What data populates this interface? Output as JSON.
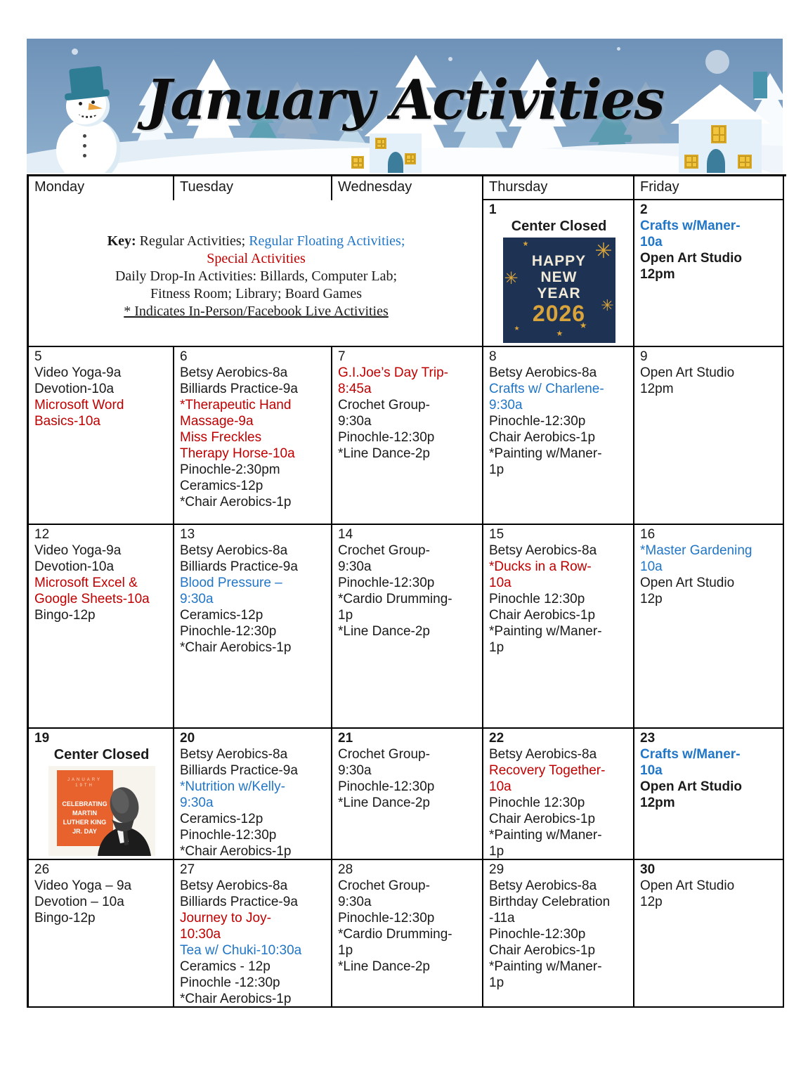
{
  "banner": {
    "title": "January Activities"
  },
  "colors": {
    "red": "#C00000",
    "blue": "#2176C7",
    "mlk_orange": "#E8622D",
    "hny_navy": "#1E3353",
    "hny_gold": "#D9A43B"
  },
  "icons": {
    "firework": "✳",
    "star": "★",
    "dot": "·"
  },
  "graphics": {
    "hny": {
      "word1": "HAPPY",
      "word2": "NEW",
      "word3": "YEAR",
      "year": "2026"
    },
    "mlk": {
      "date": "JANUARY 19TH",
      "lines": [
        "CELEBRATING",
        "MARTIN",
        "LUTHER KING",
        "JR. DAY"
      ]
    }
  },
  "calendar": {
    "headers": [
      "Monday",
      "Tuesday",
      "Wednesday",
      "Thursday",
      "Friday"
    ],
    "key_lines": [
      [
        {
          "t": "Key:",
          "b": true
        },
        {
          "t": " Regular Activities; "
        },
        {
          "t": "Regular Floating Activities;",
          "c": "blue"
        }
      ],
      [
        {
          "t": "Special Activities",
          "c": "red"
        }
      ],
      [
        {
          "t": "Daily Drop-In Activities: Billards, Computer Lab;"
        }
      ],
      [
        {
          "t": "Fitness Room; Library; Board Games"
        }
      ],
      [
        {
          "t": "* Indicates In-Person/Facebook Live Activities",
          "u": true
        }
      ]
    ],
    "rows": [
      {
        "cells": [
          {
            "type": "key"
          },
          {
            "type": "day",
            "num": "1",
            "bold_num": true,
            "closed": "Center Closed",
            "graphic": "hny"
          },
          {
            "type": "day",
            "num": "2",
            "bold_num": true,
            "events": [
              {
                "t": "Crafts w/Maner-\n10a",
                "c": "blue",
                "b": true
              },
              {
                "t": "Open Art Studio\n12pm",
                "b": true
              }
            ]
          }
        ]
      },
      {
        "cells": [
          {
            "type": "day",
            "num": "5",
            "events": [
              {
                "t": "Video Yoga-9a"
              },
              {
                "t": "Devotion-10a"
              },
              {
                "t": "Microsoft Word\nBasics-10a",
                "c": "red"
              }
            ]
          },
          {
            "type": "day",
            "num": "6",
            "events": [
              {
                "t": "Betsy Aerobics-8a"
              },
              {
                "t": "Billiards Practice-9a"
              },
              {
                "t": "*Therapeutic Hand\nMassage-9a",
                "c": "red"
              },
              {
                "t": "Miss Freckles\nTherapy Horse-10a",
                "c": "red"
              },
              {
                "t": "Pinochle-2:30pm"
              },
              {
                "t": "Ceramics-12p"
              },
              {
                "t": "*Chair Aerobics-1p"
              }
            ]
          },
          {
            "type": "day",
            "num": "7",
            "events": [
              {
                "t": "G.I.Joe’s Day Trip-\n8:45a",
                "c": "red"
              },
              {
                "t": "Crochet Group-\n9:30a"
              },
              {
                "t": "Pinochle-12:30p"
              },
              {
                "t": "*Line Dance-2p"
              }
            ]
          },
          {
            "type": "day",
            "num": "8",
            "events": [
              {
                "t": "Betsy Aerobics-8a"
              },
              {
                "t": "Crafts w/ Charlene-\n9:30a",
                "c": "blue"
              },
              {
                "t": "Pinochle-12:30p"
              },
              {
                "t": "Chair Aerobics-1p"
              },
              {
                "t": "*Painting w/Maner-\n1p"
              }
            ]
          },
          {
            "type": "day",
            "num": "9",
            "events": [
              {
                "t": "Open Art Studio\n12pm"
              }
            ]
          }
        ]
      },
      {
        "cells": [
          {
            "type": "day",
            "num": "12",
            "events": [
              {
                "t": "Video Yoga-9a"
              },
              {
                "t": "Devotion-10a"
              },
              {
                "t": "Microsoft Excel &\nGoogle Sheets-10a",
                "c": "red"
              },
              {
                "t": "Bingo-12p"
              }
            ]
          },
          {
            "type": "day",
            "num": "13",
            "events": [
              {
                "t": "Betsy Aerobics-8a"
              },
              {
                "t": "Billiards Practice-9a"
              },
              {
                "t": "Blood Pressure –\n9:30a",
                "c": "blue"
              },
              {
                "t": "Ceramics-12p"
              },
              {
                "t": "Pinochle-12:30p"
              },
              {
                "t": "*Chair Aerobics-1p"
              }
            ]
          },
          {
            "type": "day",
            "num": "14",
            "events": [
              {
                "t": "Crochet Group-\n9:30a"
              },
              {
                "t": "Pinochle-12:30p"
              },
              {
                "t": "*Cardio Drumming-\n1p"
              },
              {
                "t": "*Line Dance-2p"
              }
            ]
          },
          {
            "type": "day",
            "num": "15",
            "events": [
              {
                "t": "Betsy Aerobics-8a"
              },
              {
                "t": "*Ducks in a Row-\n10a",
                "c": "red"
              },
              {
                "t": "Pinochle 12:30p"
              },
              {
                "t": "Chair Aerobics-1p"
              },
              {
                "t": "*Painting w/Maner-\n1p"
              }
            ]
          },
          {
            "type": "day",
            "num": "16",
            "events": [
              {
                "t": "*Master Gardening\n10a",
                "c": "blue"
              },
              {
                "t": "Open Art Studio\n12p"
              }
            ]
          }
        ]
      },
      {
        "cells": [
          {
            "type": "day",
            "num": "19",
            "bold_num": true,
            "closed": "Center Closed",
            "graphic": "mlk"
          },
          {
            "type": "day",
            "num": "20",
            "bold_num": true,
            "events": [
              {
                "t": "Betsy Aerobics-8a"
              },
              {
                "t": "Billiards Practice-9a"
              },
              {
                "t": "*Nutrition w/Kelly-\n9:30a",
                "c": "blue"
              },
              {
                "t": "Ceramics-12p"
              },
              {
                "t": "Pinochle-12:30p"
              },
              {
                "t": "*Chair Aerobics-1p"
              }
            ]
          },
          {
            "type": "day",
            "num": "21",
            "bold_num": true,
            "events": [
              {
                "t": "Crochet Group-\n9:30a"
              },
              {
                "t": "Pinochle-12:30p"
              },
              {
                "t": "*Line Dance-2p"
              }
            ]
          },
          {
            "type": "day",
            "num": "22",
            "bold_num": true,
            "events": [
              {
                "t": "Betsy Aerobics-8a"
              },
              {
                "t": "Recovery Together-\n10a",
                "c": "red"
              },
              {
                "t": "Pinochle 12:30p"
              },
              {
                "t": "Chair Aerobics-1p"
              },
              {
                "t": "*Painting w/Maner-\n1p"
              }
            ]
          },
          {
            "type": "day",
            "num": "23",
            "bold_num": true,
            "events": [
              {
                "t": "Crafts w/Maner-\n10a",
                "c": "blue",
                "b": true
              },
              {
                "t": "Open Art Studio\n12pm",
                "b": true
              }
            ]
          }
        ]
      },
      {
        "cells": [
          {
            "type": "day",
            "num": "26",
            "events": [
              {
                "t": "Video Yoga – 9a"
              },
              {
                "t": "Devotion – 10a"
              },
              {
                "t": "Bingo-12p"
              }
            ]
          },
          {
            "type": "day",
            "num": "27",
            "events": [
              {
                "t": "Betsy Aerobics-8a"
              },
              {
                "t": "Billiards Practice-9a"
              },
              {
                "t": "Journey to Joy-\n10:30a",
                "c": "red"
              },
              {
                "t": "Tea w/ Chuki-10:30a",
                "c": "blue"
              },
              {
                "t": "Ceramics - 12p"
              },
              {
                "t": "Pinochle -12:30p"
              },
              {
                "t": "*Chair Aerobics-1p"
              }
            ]
          },
          {
            "type": "day",
            "num": "28",
            "events": [
              {
                "t": "Crochet Group-\n9:30a"
              },
              {
                "t": "Pinochle-12:30p"
              },
              {
                "t": "*Cardio Drumming-\n1p"
              },
              {
                "t": "*Line Dance-2p"
              }
            ]
          },
          {
            "type": "day",
            "num": "29",
            "events": [
              {
                "t": "Betsy Aerobics-8a"
              },
              {
                "t": "Birthday Celebration\n-11a"
              },
              {
                "t": "Pinochle-12:30p"
              },
              {
                "t": "Chair Aerobics-1p"
              },
              {
                "t": "*Painting w/Maner-\n1p"
              }
            ]
          },
          {
            "type": "day",
            "num": "30",
            "bold_num": true,
            "events": [
              {
                "t": "Open Art Studio\n12p"
              }
            ]
          }
        ]
      }
    ]
  }
}
